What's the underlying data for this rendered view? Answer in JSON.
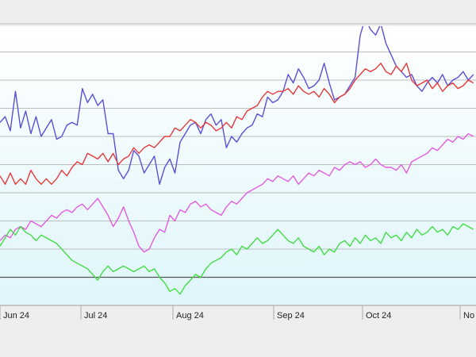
{
  "chart_data": {
    "type": "line",
    "title": "",
    "xlabel": "",
    "ylabel": "",
    "grid": true,
    "legend": "none",
    "x_ticks": [
      "Jun 24",
      "Jul 24",
      "Aug 24",
      "Sep 24",
      "Oct 24",
      "No"
    ],
    "xlim": [
      0,
      185
    ],
    "ylim": [
      0,
      10
    ],
    "baseline": 1,
    "colors": {
      "background_top": "#ffffff",
      "background_bottom": "#dff6fb",
      "grid": "#bdbdbd",
      "baseline": "#555555"
    },
    "series": [
      {
        "color": "#5b4fd6",
        "x": [
          0,
          2,
          4,
          6,
          8,
          10,
          12,
          14,
          16,
          18,
          20,
          22,
          24,
          26,
          28,
          30,
          32,
          34,
          36,
          38,
          40,
          42,
          44,
          46,
          48,
          50,
          52,
          54,
          56,
          58,
          60,
          62,
          64,
          66,
          68,
          70,
          72,
          74,
          76,
          78,
          80,
          82,
          84,
          86,
          88,
          90,
          92,
          94,
          96,
          98,
          100,
          102,
          104,
          106,
          108,
          110,
          112,
          114,
          116,
          118,
          120,
          122,
          124,
          126,
          128,
          130,
          132,
          134,
          136,
          138,
          140,
          142,
          144,
          146,
          148,
          150,
          152,
          154,
          156,
          158,
          160,
          162,
          164,
          166,
          168,
          170,
          172,
          174,
          176,
          178,
          180,
          182,
          184
        ],
        "y": [
          6.5,
          6.7,
          6.2,
          7.6,
          6.3,
          6.9,
          6.1,
          6.7,
          6.0,
          6.3,
          6.6,
          5.9,
          6.0,
          6.4,
          6.5,
          6.4,
          7.7,
          7.2,
          7.5,
          7.1,
          7.3,
          6.1,
          6.1,
          4.8,
          4.5,
          4.8,
          5.5,
          5.3,
          4.7,
          5.0,
          5.3,
          4.3,
          4.9,
          5.2,
          4.7,
          5.8,
          6.1,
          6.4,
          6.5,
          6.1,
          6.6,
          6.8,
          6.4,
          6.6,
          5.6,
          6.0,
          5.8,
          6.1,
          6.3,
          6.4,
          6.8,
          6.7,
          7.4,
          7.2,
          7.3,
          7.6,
          8.2,
          7.9,
          8.4,
          8.1,
          7.7,
          7.8,
          8.0,
          8.6,
          7.9,
          7.3,
          7.4,
          7.5,
          7.8,
          8.1,
          9.6,
          10.2,
          9.8,
          9.6,
          10.0,
          9.3,
          8.9,
          8.5,
          8.3,
          8.1,
          8.2,
          7.8,
          7.6,
          7.9,
          8.1,
          7.9,
          8.2,
          7.8,
          8.0,
          8.1,
          8.3,
          8.0,
          8.2
        ]
      },
      {
        "color": "#e53939",
        "x": [
          0,
          2,
          4,
          6,
          8,
          10,
          12,
          14,
          16,
          18,
          20,
          22,
          24,
          26,
          28,
          30,
          32,
          34,
          36,
          38,
          40,
          42,
          44,
          46,
          48,
          50,
          52,
          54,
          56,
          58,
          60,
          62,
          64,
          66,
          68,
          70,
          72,
          74,
          76,
          78,
          80,
          82,
          84,
          86,
          88,
          90,
          92,
          94,
          96,
          98,
          100,
          102,
          104,
          106,
          108,
          110,
          112,
          114,
          116,
          118,
          120,
          122,
          124,
          126,
          128,
          130,
          132,
          134,
          136,
          138,
          140,
          142,
          144,
          146,
          148,
          150,
          152,
          154,
          156,
          158,
          160,
          162,
          164,
          166,
          168,
          170,
          172,
          174,
          176,
          178,
          180,
          182,
          184
        ],
        "y": [
          4.6,
          4.3,
          4.7,
          4.3,
          4.5,
          4.3,
          4.8,
          4.5,
          4.3,
          4.5,
          4.3,
          4.5,
          4.8,
          4.6,
          4.9,
          5.1,
          5.0,
          5.4,
          5.3,
          5.2,
          5.4,
          5.1,
          5.4,
          5.0,
          5.2,
          5.3,
          5.6,
          5.4,
          5.6,
          5.7,
          5.6,
          5.8,
          6.0,
          6.0,
          6.3,
          6.2,
          6.4,
          6.6,
          6.5,
          6.3,
          6.5,
          6.4,
          6.2,
          6.3,
          6.5,
          6.3,
          6.7,
          6.6,
          6.9,
          7.0,
          7.1,
          7.4,
          7.6,
          7.5,
          7.6,
          7.6,
          7.7,
          7.5,
          7.8,
          7.6,
          7.5,
          7.6,
          7.4,
          7.7,
          7.5,
          7.2,
          7.4,
          7.5,
          7.7,
          8.0,
          8.2,
          8.4,
          8.3,
          8.4,
          8.6,
          8.3,
          8.2,
          8.5,
          8.3,
          8.6,
          8.0,
          7.8,
          7.9,
          8.0,
          7.7,
          7.9,
          7.6,
          7.8,
          7.9,
          7.7,
          7.8,
          8.0,
          7.9
        ]
      },
      {
        "color": "#e25ce2",
        "x": [
          0,
          2,
          4,
          6,
          8,
          10,
          12,
          14,
          16,
          18,
          20,
          22,
          24,
          26,
          28,
          30,
          32,
          34,
          36,
          38,
          40,
          42,
          44,
          46,
          48,
          50,
          52,
          54,
          56,
          58,
          60,
          62,
          64,
          66,
          68,
          70,
          72,
          74,
          76,
          78,
          80,
          82,
          84,
          86,
          88,
          90,
          92,
          94,
          96,
          98,
          100,
          102,
          104,
          106,
          108,
          110,
          112,
          114,
          116,
          118,
          120,
          122,
          124,
          126,
          128,
          130,
          132,
          134,
          136,
          138,
          140,
          142,
          144,
          146,
          148,
          150,
          152,
          154,
          156,
          158,
          160,
          162,
          164,
          166,
          168,
          170,
          172,
          174,
          176,
          178,
          180,
          182,
          184
        ],
        "y": [
          2.3,
          2.5,
          2.4,
          2.7,
          2.8,
          2.7,
          3.0,
          2.9,
          2.8,
          3.0,
          3.2,
          3.1,
          3.3,
          3.4,
          3.3,
          3.5,
          3.6,
          3.4,
          3.6,
          3.8,
          3.5,
          3.2,
          2.8,
          3.1,
          3.5,
          3.0,
          2.6,
          2.1,
          1.9,
          2.0,
          2.4,
          2.7,
          2.6,
          3.2,
          3.0,
          3.4,
          3.3,
          3.6,
          3.7,
          3.5,
          3.6,
          3.4,
          3.3,
          3.2,
          3.5,
          3.7,
          3.6,
          3.8,
          4.0,
          4.1,
          4.2,
          4.3,
          4.5,
          4.4,
          4.6,
          4.5,
          4.4,
          4.6,
          4.3,
          4.5,
          4.7,
          4.6,
          4.8,
          4.7,
          4.6,
          4.9,
          4.8,
          5.0,
          5.1,
          5.0,
          5.1,
          4.9,
          5.0,
          5.2,
          5.0,
          4.9,
          4.9,
          4.8,
          5.0,
          4.7,
          5.1,
          5.2,
          5.3,
          5.4,
          5.6,
          5.5,
          5.7,
          5.9,
          5.8,
          6.0,
          5.9,
          6.1,
          6.0
        ]
      },
      {
        "color": "#44dd44",
        "x": [
          0,
          2,
          4,
          6,
          8,
          10,
          12,
          14,
          16,
          18,
          20,
          22,
          24,
          26,
          28,
          30,
          32,
          34,
          36,
          38,
          40,
          42,
          44,
          46,
          48,
          50,
          52,
          54,
          56,
          58,
          60,
          62,
          64,
          66,
          68,
          70,
          72,
          74,
          76,
          78,
          80,
          82,
          84,
          86,
          88,
          90,
          92,
          94,
          96,
          98,
          100,
          102,
          104,
          106,
          108,
          110,
          112,
          114,
          116,
          118,
          120,
          122,
          124,
          126,
          128,
          130,
          132,
          134,
          136,
          138,
          140,
          142,
          144,
          146,
          148,
          150,
          152,
          154,
          156,
          158,
          160,
          162,
          164,
          166,
          168,
          170,
          172,
          174,
          176,
          178,
          180,
          182,
          184
        ],
        "y": [
          2.1,
          2.4,
          2.7,
          2.5,
          2.8,
          2.6,
          2.5,
          2.3,
          2.5,
          2.4,
          2.3,
          2.2,
          2.0,
          1.8,
          1.6,
          1.5,
          1.4,
          1.3,
          1.1,
          0.9,
          1.2,
          1.4,
          1.2,
          1.3,
          1.4,
          1.3,
          1.2,
          1.3,
          1.4,
          1.2,
          1.3,
          1.0,
          0.8,
          0.5,
          0.6,
          0.4,
          0.7,
          0.9,
          1.1,
          1.0,
          1.3,
          1.5,
          1.6,
          1.7,
          1.9,
          2.0,
          1.8,
          2.1,
          2.0,
          2.2,
          2.4,
          2.2,
          2.3,
          2.5,
          2.7,
          2.5,
          2.3,
          2.2,
          2.4,
          2.1,
          2.0,
          1.9,
          2.1,
          1.8,
          2.0,
          1.9,
          2.2,
          2.3,
          2.1,
          2.4,
          2.2,
          2.5,
          2.3,
          2.4,
          2.2,
          2.6,
          2.4,
          2.5,
          2.3,
          2.6,
          2.4,
          2.7,
          2.5,
          2.6,
          2.8,
          2.6,
          2.7,
          2.5,
          2.8,
          2.7,
          2.9,
          2.8,
          2.7
        ]
      }
    ]
  }
}
